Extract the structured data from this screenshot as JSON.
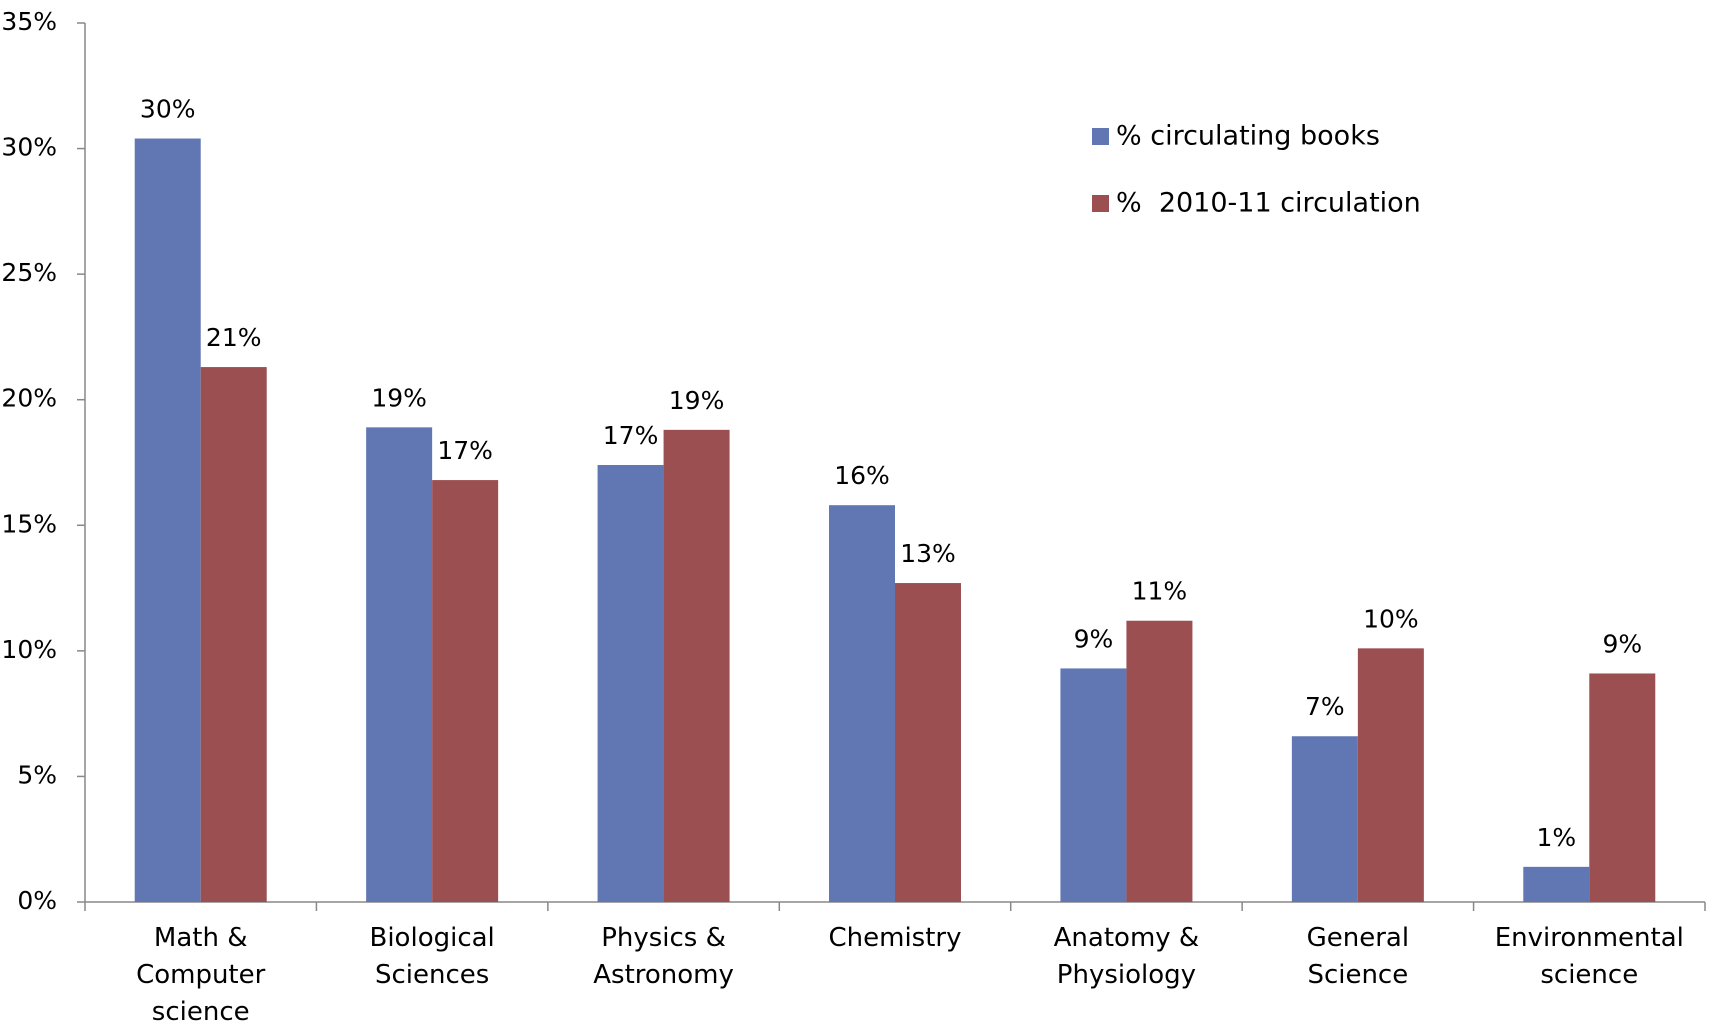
{
  "chart_data": {
    "type": "bar",
    "categories": [
      "Math & Computer science",
      "Biological Sciences",
      "Physics & Astronomy",
      "Chemistry",
      "Anatomy & Physiology",
      "General Science",
      "Environmental science"
    ],
    "series": [
      {
        "name": "% circulating books",
        "color": "#6177b4",
        "values": [
          30.4,
          18.9,
          17.4,
          15.8,
          9.3,
          6.6,
          1.4
        ],
        "value_labels": [
          "30%",
          "19%",
          "17%",
          "16%",
          "9%",
          "7%",
          "1%"
        ]
      },
      {
        "name": "%  2010-11 circulation",
        "color": "#9c4f50",
        "values": [
          21.3,
          16.8,
          18.8,
          12.7,
          11.2,
          10.1,
          9.1
        ],
        "value_labels": [
          "21%",
          "17%",
          "19%",
          "13%",
          "11%",
          "10%",
          "9%"
        ]
      }
    ],
    "ylim": [
      0,
      35
    ],
    "yticks": [
      {
        "value": 0,
        "label": "0%"
      },
      {
        "value": 5,
        "label": "5%"
      },
      {
        "value": 10,
        "label": "10%"
      },
      {
        "value": 15,
        "label": "15%"
      },
      {
        "value": 20,
        "label": "20%"
      },
      {
        "value": 25,
        "label": "25%"
      },
      {
        "value": 30,
        "label": "30%"
      },
      {
        "value": 35,
        "label": "35%"
      }
    ],
    "legend": "upper right"
  }
}
